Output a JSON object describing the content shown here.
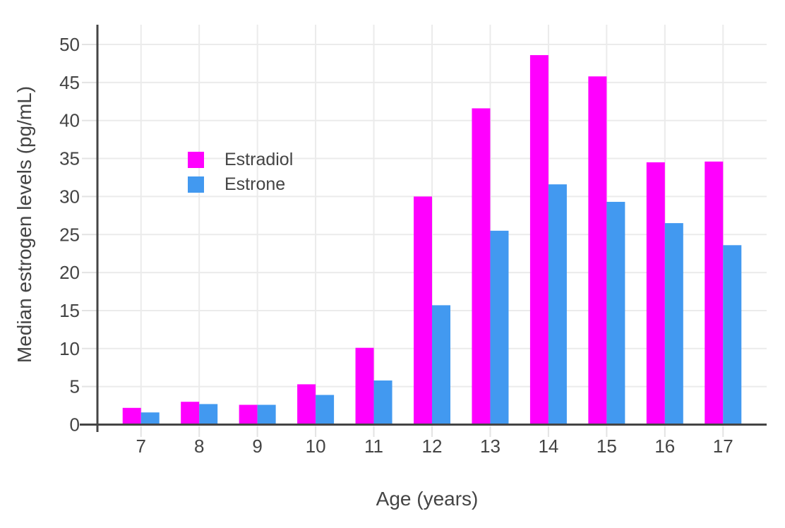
{
  "chart_data": {
    "type": "bar",
    "title": "",
    "xlabel": "Age (years)",
    "ylabel": "Median estrogen levels (pg/mL)",
    "categories": [
      7,
      8,
      9,
      10,
      11,
      12,
      13,
      14,
      15,
      16,
      17
    ],
    "series": [
      {
        "name": "Estradiol",
        "color": "#FF00FE",
        "values": [
          2.2,
          3.0,
          2.6,
          5.3,
          10.1,
          30.0,
          41.6,
          48.6,
          45.8,
          34.5,
          34.6
        ]
      },
      {
        "name": "Estrone",
        "color": "#4299F0",
        "values": [
          1.6,
          2.7,
          2.6,
          3.9,
          5.8,
          15.7,
          25.5,
          31.6,
          29.3,
          26.5,
          23.6
        ]
      }
    ],
    "yticks": [
      0,
      5,
      10,
      15,
      20,
      25,
      30,
      35,
      40,
      45,
      50
    ],
    "ylim": [
      0,
      52.6
    ],
    "grid": true,
    "legend_position": "upper-left-inside",
    "colors": {
      "axis": "#444444",
      "text": "#444444",
      "grid": "#EBEBEB",
      "tick": "#E3E3E3",
      "background": "#FFFFFF"
    }
  }
}
